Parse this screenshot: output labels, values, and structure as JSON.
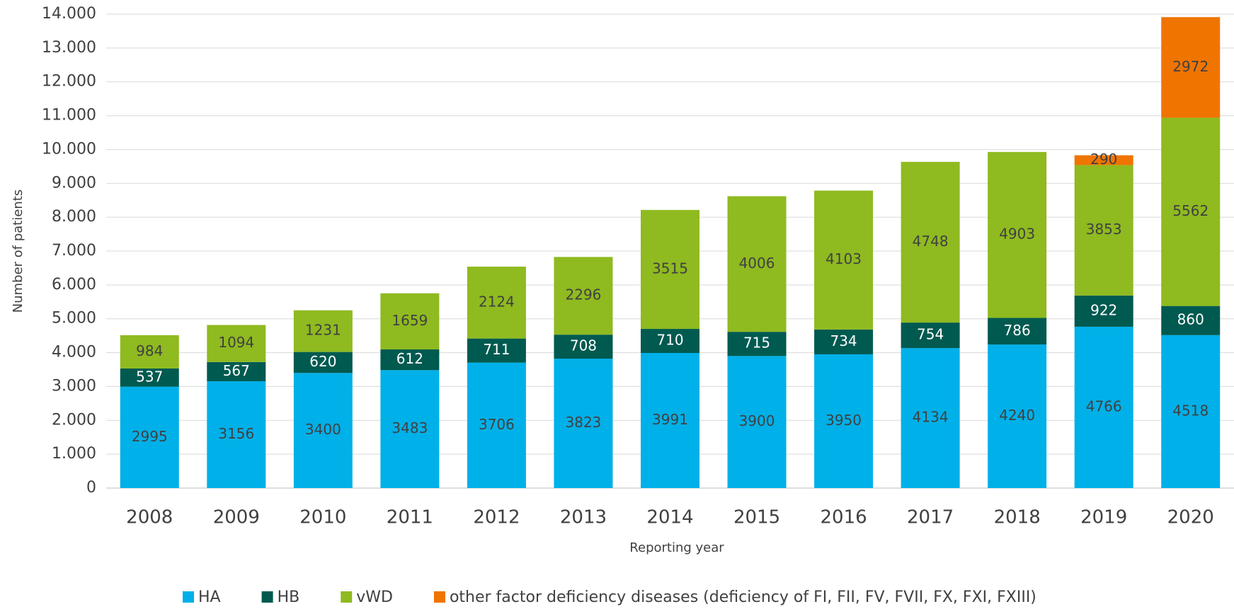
{
  "chart_data": {
    "type": "stacked_bar",
    "y_label": "Number of patients",
    "x_label": "Reporting year",
    "categories": [
      "2008",
      "2009",
      "2010",
      "2011",
      "2012",
      "2013",
      "2014",
      "2015",
      "2016",
      "2017",
      "2018",
      "2019",
      "2020"
    ],
    "series": [
      {
        "name": "HA",
        "color": "#00b0e8",
        "label_color": "#404040",
        "values": [
          2995,
          3156,
          3400,
          3483,
          3706,
          3823,
          3991,
          3900,
          3950,
          4134,
          4240,
          4766,
          4518
        ]
      },
      {
        "name": "HB",
        "color": "#005a50",
        "label_color": "#ffffff",
        "values": [
          537,
          567,
          620,
          612,
          711,
          708,
          710,
          715,
          734,
          754,
          786,
          922,
          860
        ]
      },
      {
        "name": "vWD",
        "color": "#8fba20",
        "label_color": "#404040",
        "values": [
          984,
          1094,
          1231,
          1659,
          2124,
          2296,
          3515,
          4006,
          4103,
          4748,
          4903,
          3853,
          5562
        ]
      },
      {
        "name": "other factor deficiency diseases (deficiency of FI, FII, FV, FVII, FX, FXI, FXIII)",
        "color": "#f07400",
        "label_color": "#404040",
        "values": [
          null,
          null,
          null,
          null,
          null,
          null,
          null,
          null,
          null,
          null,
          null,
          290,
          2972
        ]
      }
    ],
    "ylim": [
      0,
      14000
    ],
    "yticks": [
      0,
      {
        "value": 1000,
        "label": "1.000"
      },
      {
        "value": 2000,
        "label": "2.000"
      },
      {
        "value": 3000,
        "label": "3.000"
      },
      {
        "value": 4000,
        "label": "4.000"
      },
      {
        "value": 5000,
        "label": "5.000"
      },
      {
        "value": 6000,
        "label": "6.000"
      },
      {
        "value": 7000,
        "label": "7.000"
      },
      {
        "value": 8000,
        "label": "8.000"
      },
      {
        "value": 9000,
        "label": "9.000"
      },
      {
        "value": 10000,
        "label": "10.000"
      },
      {
        "value": 11000,
        "label": "11.000"
      },
      {
        "value": 12000,
        "label": "12.000"
      },
      {
        "value": 13000,
        "label": "13.000"
      },
      {
        "value": 14000,
        "label": "14.000"
      }
    ],
    "grid": true,
    "legend": "bottom"
  }
}
